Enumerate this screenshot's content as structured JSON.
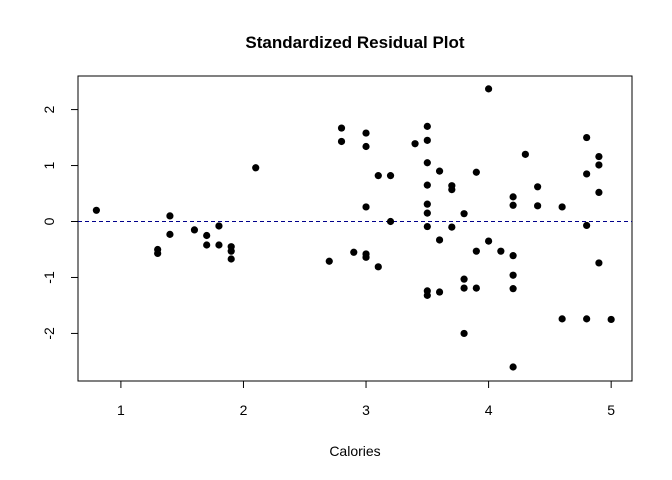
{
  "chart_data": {
    "type": "scatter",
    "title": "Standardized Residual Plot",
    "xlabel": "Calories",
    "ylabel": "",
    "xlim": [
      0.65,
      5.17
    ],
    "ylim": [
      -2.85,
      2.6
    ],
    "xticks": [
      1,
      2,
      3,
      4,
      5
    ],
    "yticks": [
      -2,
      -1,
      0,
      1,
      2
    ],
    "reference_line": {
      "y": 0,
      "style": "dashed",
      "color": "#00008b"
    },
    "grid": false,
    "point_color": "#000000",
    "points": [
      {
        "x": 0.8,
        "y": 0.2
      },
      {
        "x": 1.3,
        "y": -0.5
      },
      {
        "x": 1.3,
        "y": -0.57
      },
      {
        "x": 1.4,
        "y": 0.1
      },
      {
        "x": 1.4,
        "y": -0.23
      },
      {
        "x": 1.6,
        "y": -0.15
      },
      {
        "x": 1.7,
        "y": -0.25
      },
      {
        "x": 1.7,
        "y": -0.42
      },
      {
        "x": 1.8,
        "y": -0.08
      },
      {
        "x": 1.8,
        "y": -0.42
      },
      {
        "x": 1.9,
        "y": -0.45
      },
      {
        "x": 1.9,
        "y": -0.53
      },
      {
        "x": 1.9,
        "y": -0.67
      },
      {
        "x": 2.1,
        "y": 0.96
      },
      {
        "x": 2.7,
        "y": -0.71
      },
      {
        "x": 2.8,
        "y": 1.67
      },
      {
        "x": 2.8,
        "y": 1.43
      },
      {
        "x": 2.9,
        "y": -0.55
      },
      {
        "x": 3.0,
        "y": 1.58
      },
      {
        "x": 3.0,
        "y": 1.34
      },
      {
        "x": 3.0,
        "y": 0.26
      },
      {
        "x": 3.0,
        "y": -0.58
      },
      {
        "x": 3.0,
        "y": -0.64
      },
      {
        "x": 3.1,
        "y": 0.82
      },
      {
        "x": 3.1,
        "y": -0.81
      },
      {
        "x": 3.2,
        "y": 0.82
      },
      {
        "x": 3.2,
        "y": 0.0
      },
      {
        "x": 3.4,
        "y": 1.39
      },
      {
        "x": 3.5,
        "y": 1.7
      },
      {
        "x": 3.5,
        "y": 1.45
      },
      {
        "x": 3.5,
        "y": 1.05
      },
      {
        "x": 3.5,
        "y": 0.65
      },
      {
        "x": 3.5,
        "y": 0.31
      },
      {
        "x": 3.5,
        "y": 0.15
      },
      {
        "x": 3.5,
        "y": -0.09
      },
      {
        "x": 3.5,
        "y": -1.24
      },
      {
        "x": 3.5,
        "y": -1.32
      },
      {
        "x": 3.6,
        "y": 0.9
      },
      {
        "x": 3.6,
        "y": -0.33
      },
      {
        "x": 3.6,
        "y": -1.26
      },
      {
        "x": 3.7,
        "y": 0.64
      },
      {
        "x": 3.7,
        "y": 0.57
      },
      {
        "x": 3.7,
        "y": -0.1
      },
      {
        "x": 3.8,
        "y": 0.14
      },
      {
        "x": 3.8,
        "y": -1.03
      },
      {
        "x": 3.8,
        "y": -1.19
      },
      {
        "x": 3.8,
        "y": -2.0
      },
      {
        "x": 3.9,
        "y": 0.88
      },
      {
        "x": 3.9,
        "y": -0.53
      },
      {
        "x": 3.9,
        "y": -1.19
      },
      {
        "x": 4.0,
        "y": 2.37
      },
      {
        "x": 4.0,
        "y": -0.35
      },
      {
        "x": 4.1,
        "y": -0.53
      },
      {
        "x": 4.2,
        "y": 0.44
      },
      {
        "x": 4.2,
        "y": 0.29
      },
      {
        "x": 4.2,
        "y": -0.61
      },
      {
        "x": 4.2,
        "y": -0.96
      },
      {
        "x": 4.2,
        "y": -1.2
      },
      {
        "x": 4.2,
        "y": -2.6
      },
      {
        "x": 4.3,
        "y": 1.2
      },
      {
        "x": 4.4,
        "y": 0.62
      },
      {
        "x": 4.4,
        "y": 0.28
      },
      {
        "x": 4.6,
        "y": 0.26
      },
      {
        "x": 4.6,
        "y": -1.74
      },
      {
        "x": 4.8,
        "y": 1.5
      },
      {
        "x": 4.8,
        "y": 0.85
      },
      {
        "x": 4.8,
        "y": -0.07
      },
      {
        "x": 4.8,
        "y": -1.74
      },
      {
        "x": 4.9,
        "y": 1.16
      },
      {
        "x": 4.9,
        "y": 1.01
      },
      {
        "x": 4.9,
        "y": 0.52
      },
      {
        "x": 4.9,
        "y": -0.74
      },
      {
        "x": 5.0,
        "y": -1.75
      }
    ]
  }
}
